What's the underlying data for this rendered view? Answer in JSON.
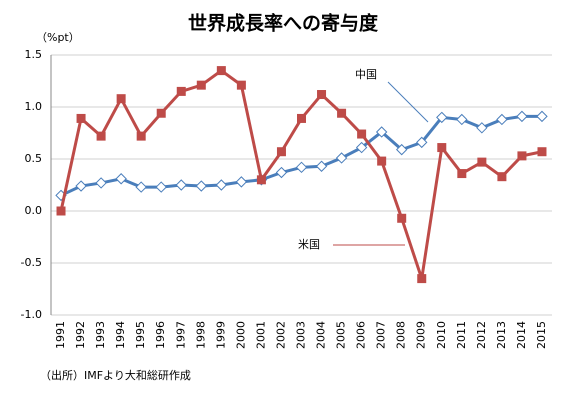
{
  "chart_data": {
    "type": "line",
    "title": "世界成長率への寄与度",
    "y_label": "（%pt）",
    "source": "（出所）IMFより大和総研作成",
    "categories": [
      "1991",
      "1992",
      "1993",
      "1994",
      "1995",
      "1996",
      "1997",
      "1998",
      "1999",
      "2000",
      "2001",
      "2002",
      "2003",
      "2004",
      "2005",
      "2006",
      "2007",
      "2008",
      "2009",
      "2010",
      "2011",
      "2012",
      "2013",
      "2014",
      "2015"
    ],
    "series": [
      {
        "name": "中国",
        "color": "#4a7ebb",
        "marker": "diamond",
        "values": [
          0.15,
          0.24,
          0.27,
          0.31,
          0.23,
          0.23,
          0.25,
          0.24,
          0.25,
          0.28,
          0.3,
          0.37,
          0.42,
          0.43,
          0.51,
          0.61,
          0.76,
          0.59,
          0.66,
          0.9,
          0.88,
          0.8,
          0.88,
          0.91,
          0.91
        ]
      },
      {
        "name": "米国",
        "color": "#be4b48",
        "marker": "square",
        "values": [
          0.0,
          0.89,
          0.72,
          1.08,
          0.72,
          0.94,
          1.15,
          1.21,
          1.35,
          1.21,
          0.3,
          0.57,
          0.89,
          1.12,
          0.94,
          0.74,
          0.48,
          -0.07,
          -0.65,
          0.61,
          0.36,
          0.47,
          0.33,
          0.53,
          0.57
        ]
      }
    ],
    "ylim": [
      -1.0,
      1.5
    ],
    "yticks": [
      {
        "value": 1.5,
        "label": "1.5"
      },
      {
        "value": 1.0,
        "label": "1.0"
      },
      0.5,
      {
        "value": 0.0,
        "label": "0.0"
      },
      -0.5,
      {
        "value": -1.0,
        "label": "-1.0"
      }
    ],
    "grid": true
  }
}
